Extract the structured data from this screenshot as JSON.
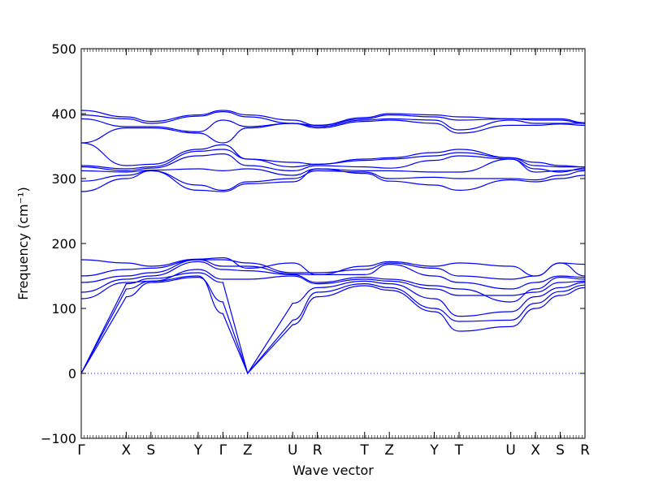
{
  "chart_data": {
    "type": "line",
    "title": "",
    "xlabel": "Wave vector",
    "ylabel": "Frequency (cm⁻¹)",
    "ylim": [
      -100,
      500
    ],
    "yticks": [
      -100,
      0,
      100,
      200,
      300,
      400,
      500
    ],
    "zero_line": true,
    "grid": false,
    "line_color": "#0000ff",
    "x_unit_note": "path length in segment units; high-symmetry points at listed positions",
    "high_symmetry_points": [
      {
        "label": "Γ",
        "x": 0
      },
      {
        "label": "X",
        "x": 1
      },
      {
        "label": "S",
        "x": 1.55
      },
      {
        "label": "Y",
        "x": 2.6
      },
      {
        "label": "Γ",
        "x": 3.15
      },
      {
        "label": "Z",
        "x": 3.7
      },
      {
        "label": "U",
        "x": 4.7
      },
      {
        "label": "R",
        "x": 5.25
      },
      {
        "label": "T",
        "x": 6.3
      },
      {
        "label": "Z",
        "x": 6.85
      },
      {
        "label": "Y",
        "x": 7.85
      },
      {
        "label": "T",
        "x": 8.4
      },
      {
        "label": "U",
        "x": 9.55
      },
      {
        "label": "X",
        "x": 10.1
      },
      {
        "label": "S",
        "x": 10.65
      },
      {
        "label": "R",
        "x": 11.2
      }
    ],
    "series": [
      {
        "values": [
          0,
          118,
          140,
          148,
          110,
          0,
          75,
          118,
          135,
          128,
          95,
          65,
          72,
          100,
          120,
          132,
          135
        ]
      },
      {
        "values": [
          0,
          130,
          142,
          150,
          92,
          0,
          82,
          125,
          138,
          132,
          100,
          80,
          82,
          108,
          126,
          136,
          135
        ]
      },
      {
        "values": [
          0,
          138,
          146,
          155,
          140,
          0,
          108,
          132,
          142,
          138,
          115,
          88,
          95,
          118,
          132,
          140,
          142
        ]
      },
      {
        "values": [
          115,
          140,
          142,
          160,
          145,
          145,
          150,
          138,
          145,
          142,
          130,
          120,
          120,
          125,
          140,
          142,
          142
        ]
      },
      {
        "values": [
          125,
          145,
          150,
          172,
          160,
          158,
          152,
          140,
          148,
          145,
          135,
          130,
          110,
          130,
          148,
          145,
          142
        ]
      },
      {
        "values": [
          140,
          150,
          155,
          175,
          165,
          165,
          153,
          152,
          152,
          168,
          150,
          140,
          130,
          140,
          150,
          148,
          152
        ]
      },
      {
        "values": [
          150,
          160,
          162,
          175,
          175,
          170,
          155,
          155,
          160,
          170,
          162,
          150,
          145,
          150,
          170,
          150,
          152
        ]
      },
      {
        "values": [
          175,
          170,
          165,
          176,
          178,
          162,
          170,
          152,
          165,
          172,
          165,
          170,
          165,
          150,
          170,
          168,
          152
        ]
      },
      {
        "values": [
          280,
          300,
          312,
          282,
          280,
          292,
          295,
          315,
          308,
          296,
          290,
          282,
          298,
          295,
          300,
          305,
          310
        ]
      },
      {
        "values": [
          296,
          305,
          312,
          290,
          282,
          295,
          300,
          312,
          310,
          300,
          302,
          300,
          300,
          298,
          305,
          312,
          310
        ]
      },
      {
        "values": [
          312,
          310,
          313,
          315,
          312,
          315,
          305,
          315,
          312,
          312,
          310,
          310,
          330,
          310,
          312,
          314,
          316
        ]
      },
      {
        "values": [
          318,
          312,
          316,
          335,
          338,
          320,
          312,
          320,
          318,
          316,
          328,
          335,
          330,
          315,
          310,
          316,
          316
        ]
      },
      {
        "values": [
          320,
          315,
          318,
          342,
          345,
          330,
          318,
          322,
          328,
          330,
          335,
          340,
          332,
          320,
          318,
          318,
          316
        ]
      },
      {
        "values": [
          355,
          320,
          322,
          345,
          352,
          330,
          325,
          322,
          330,
          332,
          340,
          345,
          332,
          325,
          320,
          318,
          316
        ]
      },
      {
        "values": [
          355,
          378,
          378,
          370,
          355,
          378,
          385,
          378,
          388,
          390,
          385,
          370,
          382,
          382,
          384,
          382,
          380
        ]
      },
      {
        "values": [
          392,
          380,
          380,
          372,
          390,
          380,
          385,
          380,
          390,
          392,
          390,
          375,
          390,
          385,
          385,
          385,
          380
        ]
      },
      {
        "values": [
          398,
          392,
          385,
          396,
          403,
          395,
          385,
          382,
          392,
          398,
          395,
          390,
          392,
          390,
          390,
          385,
          380
        ]
      },
      {
        "values": [
          405,
          395,
          388,
          398,
          405,
          398,
          390,
          382,
          394,
          400,
          398,
          395,
          392,
          392,
          392,
          386,
          380
        ]
      }
    ]
  }
}
